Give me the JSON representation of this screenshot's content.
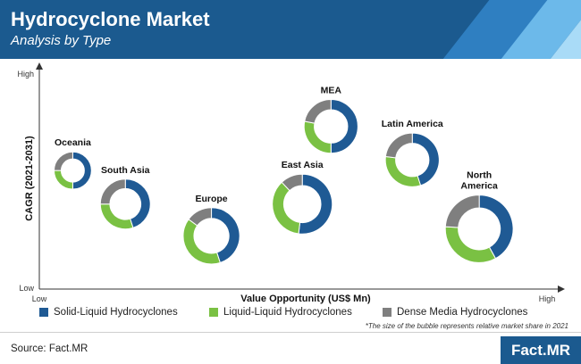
{
  "header": {
    "title": "Hydrocyclone Market",
    "subtitle": "Analysis by Type"
  },
  "chart_data": {
    "type": "bubble-donut",
    "xlabel": "Value Opportunity (US$ Mn)",
    "ylabel": "CAGR (2021-2031)",
    "x_ticks": {
      "low": "Low",
      "high": "High"
    },
    "y_ticks": {
      "low": "Low",
      "high": "High"
    },
    "segments": [
      "Solid-Liquid Hydrocyclones",
      "Liquid-Liquid Hydrocyclones",
      "Dense Media Hydrocyclones"
    ],
    "colors": {
      "solid": "#1f5a94",
      "liquid": "#7ac143",
      "dense": "#7f7f7f"
    },
    "x_range": [
      0,
      1
    ],
    "y_range": [
      0,
      1
    ],
    "regions": [
      {
        "name": "Oceania",
        "x": 0.04,
        "y": 0.57,
        "size": 0.7,
        "shares": [
          0.5,
          0.25,
          0.25
        ]
      },
      {
        "name": "South Asia",
        "x": 0.15,
        "y": 0.38,
        "size": 1.25,
        "shares": [
          0.45,
          0.3,
          0.25
        ]
      },
      {
        "name": "Europe",
        "x": 0.33,
        "y": 0.2,
        "size": 1.6,
        "shares": [
          0.45,
          0.4,
          0.15
        ]
      },
      {
        "name": "East Asia",
        "x": 0.52,
        "y": 0.38,
        "size": 1.8,
        "shares": [
          0.52,
          0.36,
          0.12
        ]
      },
      {
        "name": "MEA",
        "x": 0.58,
        "y": 0.82,
        "size": 1.45,
        "shares": [
          0.5,
          0.28,
          0.22
        ]
      },
      {
        "name": "Latin America",
        "x": 0.75,
        "y": 0.63,
        "size": 1.45,
        "shares": [
          0.45,
          0.32,
          0.23
        ]
      },
      {
        "name": "North America",
        "x": 0.89,
        "y": 0.24,
        "size": 2.3,
        "shares": [
          0.42,
          0.34,
          0.24
        ]
      }
    ],
    "note": "*The size of the bubble represents relative market share in 2021"
  },
  "legend": [
    {
      "label": "Solid-Liquid Hydrocyclones",
      "color": "#1f5a94"
    },
    {
      "label": "Liquid-Liquid Hydrocyclones",
      "color": "#7ac143"
    },
    {
      "label": "Dense Media Hydrocyclones",
      "color": "#7f7f7f"
    }
  ],
  "footer": {
    "source": "Source: Fact.MR",
    "logo": "Fact.MR"
  }
}
